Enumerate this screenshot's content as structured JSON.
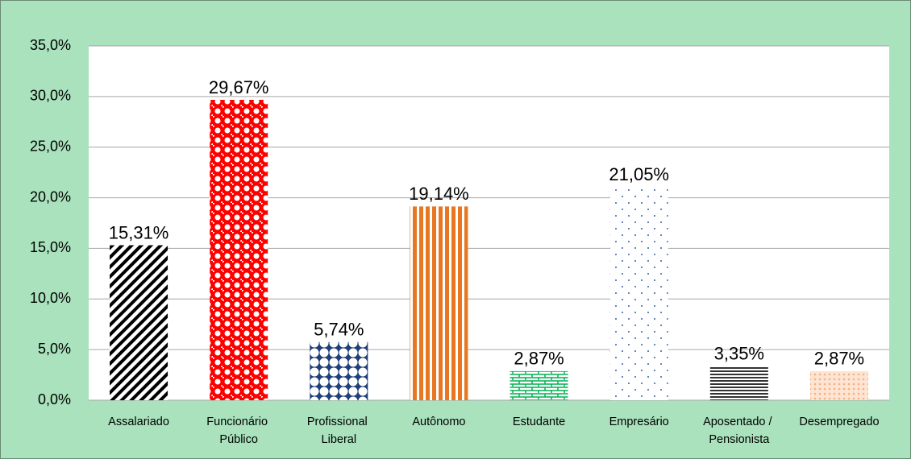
{
  "chart_data": {
    "type": "bar",
    "categories": [
      "Assalariado",
      "Funcionário Público",
      "Profissional Liberal",
      "Autônomo",
      "Estudante",
      "Empresário",
      "Aposentado / Pensionista",
      "Desempregado"
    ],
    "values": [
      15.31,
      29.67,
      5.74,
      19.14,
      2.87,
      21.05,
      3.35,
      2.87
    ],
    "value_labels": [
      "15,31%",
      "29,67%",
      "5,74%",
      "19,14%",
      "2,87%",
      "21,05%",
      "3,35%",
      "2,87%"
    ],
    "colors": [
      "#000000",
      "#ff0000",
      "#1f3f7a",
      "#e87722",
      "#00b050",
      "#2e5fa8",
      "#333333",
      "#f4b183"
    ],
    "ylim": [
      0,
      35
    ],
    "yticks": [
      {
        "value": 0,
        "label": "0,0%"
      },
      {
        "value": 5,
        "label": "5,0%"
      },
      {
        "value": 10,
        "label": "10,0%"
      },
      {
        "value": 15,
        "label": "15,0%"
      },
      {
        "value": 20,
        "label": "20,0%"
      },
      {
        "value": 25,
        "label": "25,0%"
      },
      {
        "value": 30,
        "label": "30,0%"
      },
      {
        "value": 35,
        "label": "35,0%"
      }
    ],
    "grid": true
  }
}
